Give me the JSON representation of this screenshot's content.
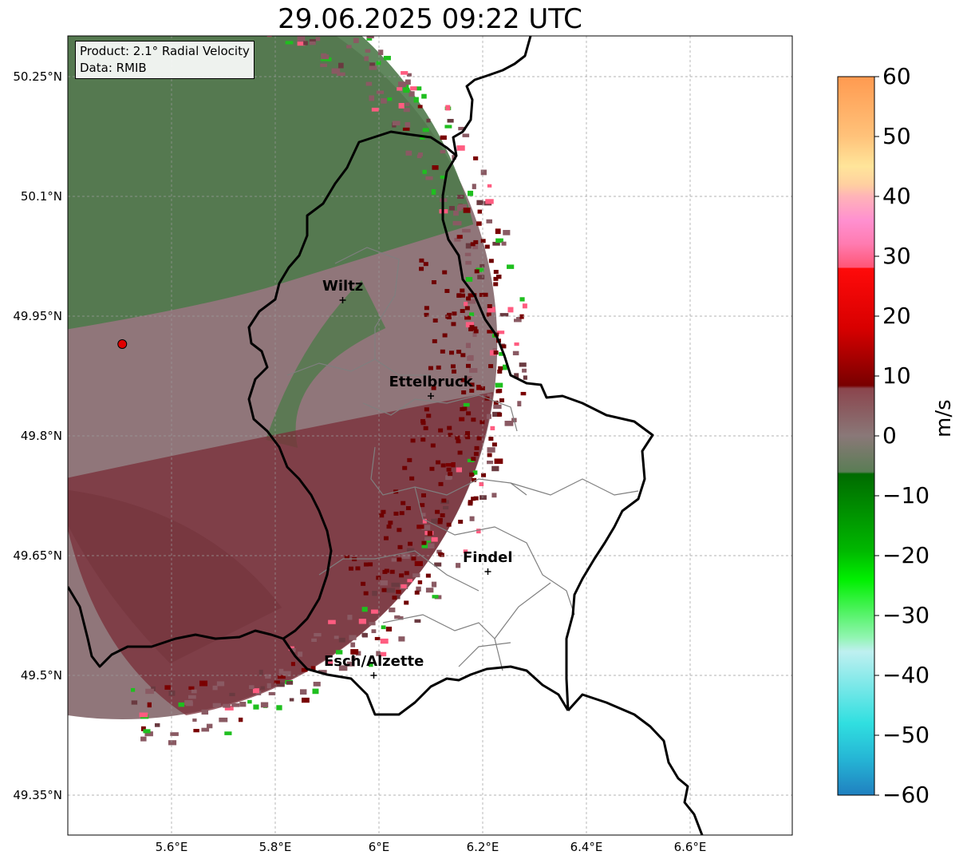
{
  "title": "29.06.2025 09:22 UTC",
  "info": {
    "product": "Product: 2.1° Radial Velocity",
    "data": "Data: RMIB"
  },
  "lat_ticks": [
    "50.25°N",
    "50.1°N",
    "49.95°N",
    "49.8°N",
    "49.65°N",
    "49.5°N",
    "49.35°N"
  ],
  "lon_ticks": [
    "5.6°E",
    "5.8°E",
    "6°E",
    "6.2°E",
    "6.4°E",
    "6.6°E"
  ],
  "cities": [
    {
      "name": "Wiltz",
      "lon": 5.93,
      "lat": 49.97
    },
    {
      "name": "Ettelbruck",
      "lon": 6.1,
      "lat": 49.85
    },
    {
      "name": "Findel",
      "lon": 6.21,
      "lat": 49.63
    },
    {
      "name": "Esch/Alzette",
      "lon": 5.99,
      "lat": 49.5
    }
  ],
  "radar_site": {
    "lon": 5.505,
    "lat": 49.915
  },
  "colorbar": {
    "label": "m/s",
    "min": -60,
    "max": 60,
    "ticks": [
      "60",
      "50",
      "40",
      "30",
      "20",
      "10",
      "0",
      "−10",
      "−20",
      "−30",
      "−40",
      "−50",
      "−60"
    ]
  },
  "colors": {
    "approaching_dark_green": "#4f7a4b",
    "zero_grey_mauve": "#8a6f73",
    "receding_maroon": "#7a2e38",
    "border": "#000000",
    "canton_lines": "#7f7f7f"
  }
}
